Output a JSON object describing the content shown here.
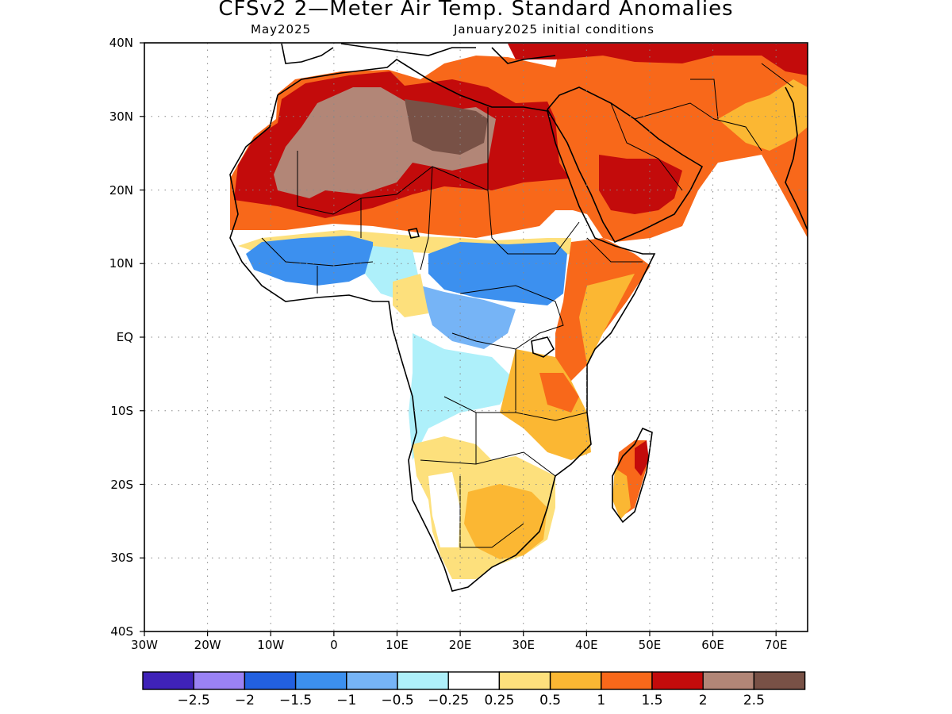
{
  "title": "CFSv2 2—Meter Air Temp. Standard Anomalies",
  "subtitle_left": "May2025",
  "subtitle_right": "January2025 initial conditions",
  "lat_labels": [
    "40N",
    "30N",
    "20N",
    "10N",
    "EQ",
    "10S",
    "20S",
    "30S",
    "40S"
  ],
  "lon_labels": [
    "30W",
    "20W",
    "10W",
    "0",
    "10E",
    "20E",
    "30E",
    "40E",
    "50E",
    "60E",
    "70E"
  ],
  "colorbar": {
    "colors": [
      "#3f22b8",
      "#9a82f4",
      "#2260e0",
      "#3c90ef",
      "#76b4f6",
      "#aef0fa",
      "#ffffff",
      "#fde07c",
      "#fbb733",
      "#f8681a",
      "#c30b0b",
      "#b28677",
      "#785146"
    ],
    "labels": [
      "−2.5",
      "−2",
      "−1.5",
      "−1",
      "−0.5",
      "−0.25",
      "0.25",
      "0.5",
      "1",
      "1.5",
      "2",
      "2.5"
    ]
  },
  "colors": {
    "ocean": "#ffffff",
    "brown": "#b28677",
    "darkbrown": "#785146",
    "darkred": "#c30b0b",
    "orange": "#f8681a",
    "lightorange": "#fbb733",
    "yellow": "#fde07c",
    "lightcyan": "#aef0fa",
    "lightblue": "#76b4f6",
    "blue": "#3c90ef"
  }
}
